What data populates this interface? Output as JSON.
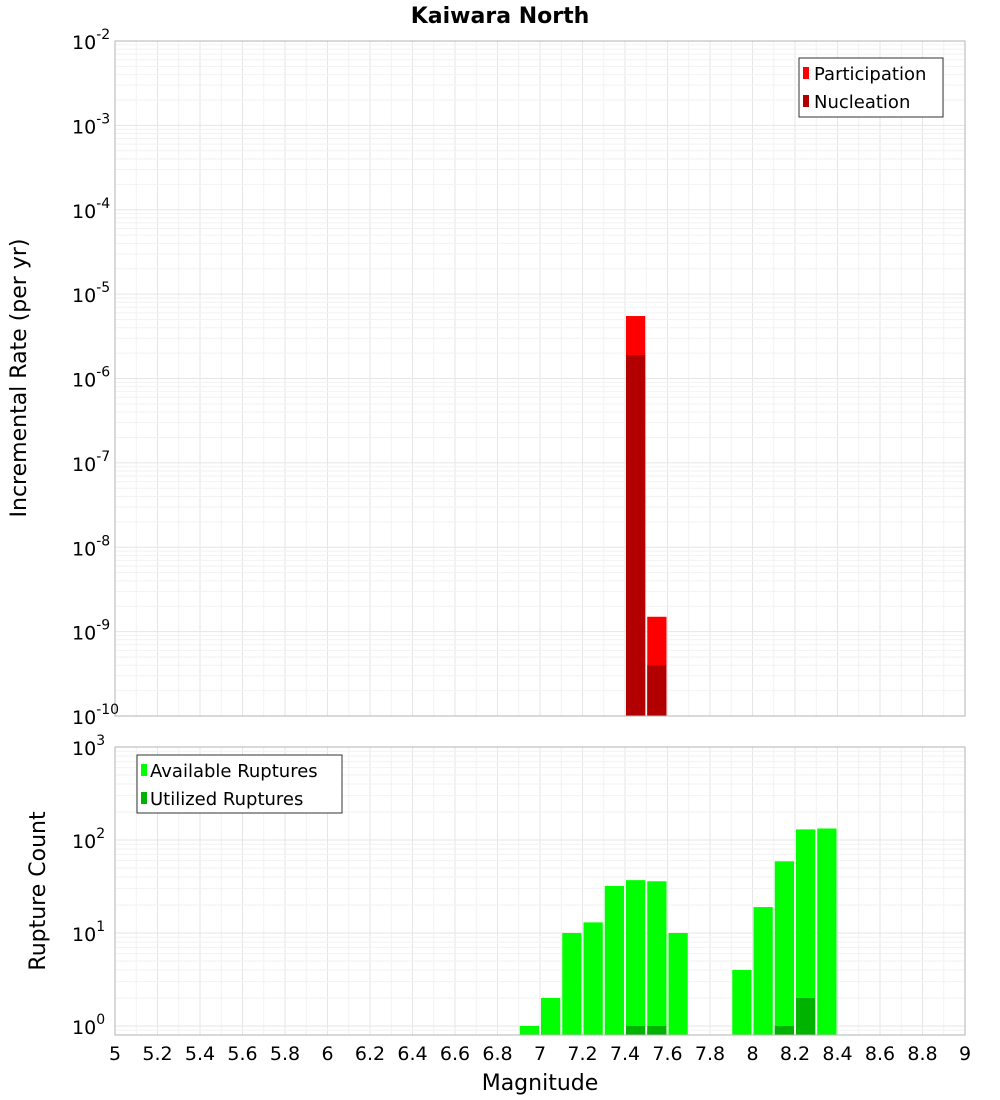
{
  "chart_data": [
    {
      "type": "bar",
      "title": "Kaiwara North",
      "xlabel": "",
      "ylabel": "Incremental Rate (per yr)",
      "yscale": "log",
      "ylim": [
        1e-10,
        0.01
      ],
      "y_tick_base": "10",
      "y_tick_exponents": [
        "-10",
        "-9",
        "-8",
        "-7",
        "-6",
        "-5",
        "-4",
        "-3",
        "-2"
      ],
      "xlim": [
        5,
        9
      ],
      "bin_width": 0.1,
      "legend_position": "top-right",
      "series": [
        {
          "name": "Participation",
          "color": "#ff0000",
          "x": [
            7.45,
            7.55
          ],
          "values": [
            5.5e-06,
            1.5e-09
          ]
        },
        {
          "name": "Nucleation",
          "color": "#b20000",
          "x": [
            7.45,
            7.55
          ],
          "values": [
            1.9e-06,
            4e-10
          ]
        }
      ]
    },
    {
      "type": "bar",
      "title": "",
      "xlabel": "Magnitude",
      "ylabel": "Rupture Count",
      "yscale": "log",
      "ylim": [
        0.8,
        1000
      ],
      "y_tick_base": "10",
      "y_tick_exponents": [
        "0",
        "1",
        "2",
        "3"
      ],
      "xlim": [
        5,
        9
      ],
      "x_tick_labels": [
        "5",
        "5.2",
        "5.4",
        "5.6",
        "5.8",
        "6",
        "6.2",
        "6.4",
        "6.6",
        "6.8",
        "7",
        "7.2",
        "7.4",
        "7.6",
        "7.8",
        "8",
        "8.2",
        "8.4",
        "8.6",
        "8.8",
        "9"
      ],
      "bin_width": 0.1,
      "legend_position": "top-left",
      "series": [
        {
          "name": "Available Ruptures",
          "color": "#00ff00",
          "x": [
            6.95,
            7.05,
            7.15,
            7.25,
            7.35,
            7.45,
            7.55,
            7.65,
            7.95,
            8.05,
            8.15,
            8.25,
            8.35
          ],
          "values": [
            1,
            2,
            10,
            13,
            32,
            37,
            36,
            10,
            4,
            19,
            59,
            130,
            133
          ]
        },
        {
          "name": "Utilized Ruptures",
          "color": "#00b300",
          "x": [
            7.45,
            7.55,
            8.15,
            8.25
          ],
          "values": [
            1,
            1,
            1,
            2
          ]
        }
      ]
    }
  ]
}
